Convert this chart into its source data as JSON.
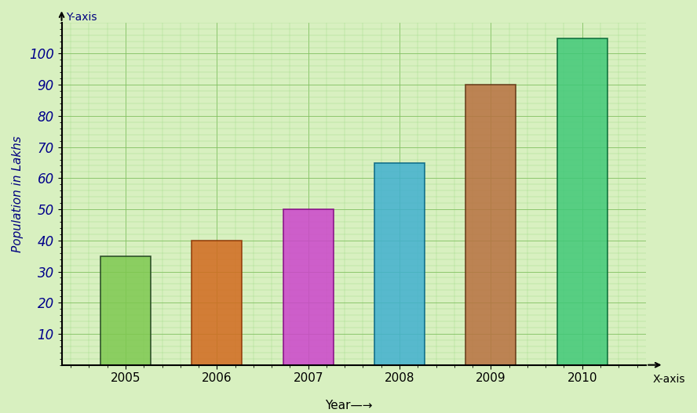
{
  "years": [
    "2005",
    "2006",
    "2007",
    "2008",
    "2009",
    "2010"
  ],
  "values": [
    35,
    40,
    50,
    65,
    90,
    105
  ],
  "bar_colors": [
    "#7ec850",
    "#d2691e",
    "#cc44cc",
    "#40b0d0",
    "#b87040",
    "#40c878"
  ],
  "bar_edge_colors": [
    "#1a3a1a",
    "#8b3000",
    "#800080",
    "#006080",
    "#5c3010",
    "#006030"
  ],
  "ylabel": "Population in Lakhs",
  "ylim": [
    0,
    110
  ],
  "yticks": [
    10,
    20,
    30,
    40,
    50,
    60,
    70,
    80,
    90,
    100
  ],
  "background_color": "#d8f0c0",
  "grid_color": "#80c060",
  "grid_minor_color": "#a0d888",
  "y_axis_label": "Y-axis",
  "x_axis_label": "X-axis"
}
